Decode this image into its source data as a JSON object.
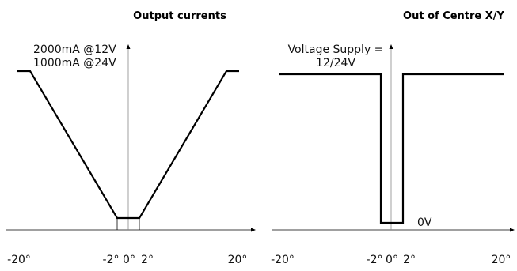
{
  "chart_data": [
    {
      "type": "line",
      "title": "Output currents",
      "xlabel": "",
      "ylabel": "",
      "xlim": [
        -20,
        20
      ],
      "tick_labels": [
        "-20°",
        "-2°",
        "0°",
        "2°",
        "20°"
      ],
      "annotation_lines": [
        "2000mA @12V",
        "1000mA @24V"
      ],
      "series": [
        {
          "points": [
            [
              -20,
              2000
            ],
            [
              -18,
              2000
            ],
            [
              -2,
              100
            ],
            [
              2,
              100
            ],
            [
              18,
              2000
            ],
            [
              20,
              2000
            ]
          ]
        }
      ]
    },
    {
      "type": "line",
      "title": "Out of Centre X/Y",
      "xlabel": "",
      "ylabel": "",
      "xlim": [
        -20,
        20
      ],
      "tick_labels": [
        "-20°",
        "-2°",
        "0°",
        "2°",
        "20°"
      ],
      "annotation_lines": [
        "Voltage Supply =",
        "12/24V"
      ],
      "low_label": "0V",
      "series": [
        {
          "points": [
            [
              -20,
              12
            ],
            [
              -2,
              12
            ],
            [
              -2,
              0
            ],
            [
              2,
              0
            ],
            [
              2,
              12
            ],
            [
              20,
              12
            ]
          ]
        }
      ]
    }
  ]
}
